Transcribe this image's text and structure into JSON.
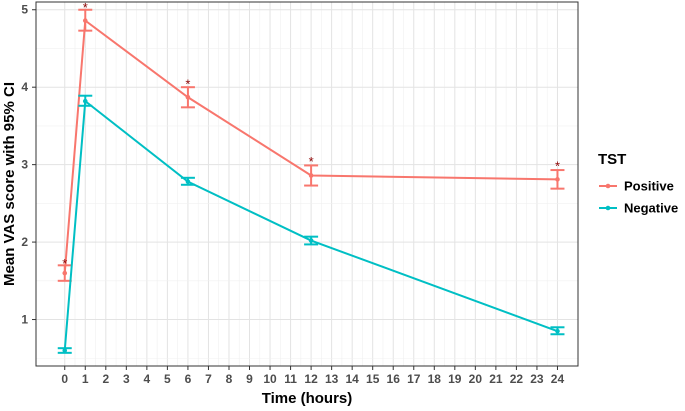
{
  "chart_data": {
    "type": "line",
    "xlabel": "Time (hours)",
    "ylabel": "Mean VAS score with 95% CI",
    "xlim": [
      -1.4,
      25
    ],
    "ylim": [
      0.4,
      5.1
    ],
    "x_ticks": [
      0,
      1,
      2,
      3,
      4,
      5,
      6,
      7,
      8,
      9,
      10,
      11,
      12,
      13,
      14,
      15,
      16,
      17,
      18,
      19,
      20,
      21,
      22,
      23,
      24
    ],
    "y_ticks": [
      1,
      2,
      3,
      4,
      5
    ],
    "grid": true,
    "legend": {
      "title": "TST",
      "position": "right"
    },
    "series": [
      {
        "name": "Positive",
        "color": "#f8766d",
        "x": [
          0,
          1,
          6,
          12,
          24
        ],
        "y": [
          1.6,
          4.86,
          3.87,
          2.86,
          2.81
        ],
        "ci_low": [
          1.5,
          4.73,
          3.74,
          2.73,
          2.69
        ],
        "ci_high": [
          1.7,
          5.0,
          4.0,
          2.99,
          2.93
        ]
      },
      {
        "name": "Negative",
        "color": "#00bfc4",
        "x": [
          0,
          1,
          6,
          12,
          24
        ],
        "y": [
          0.6,
          3.82,
          2.78,
          2.02,
          0.85
        ],
        "ci_low": [
          0.57,
          3.76,
          2.74,
          1.97,
          0.81
        ],
        "ci_high": [
          0.63,
          3.89,
          2.83,
          2.07,
          0.9
        ]
      }
    ],
    "annotations": [
      {
        "x": 0,
        "y": 1.74,
        "text": "*"
      },
      {
        "x": 1,
        "y": 5.05,
        "text": "*"
      },
      {
        "x": 6,
        "y": 4.06,
        "text": "*"
      },
      {
        "x": 12,
        "y": 3.06,
        "text": "*"
      },
      {
        "x": 24,
        "y": 3.0,
        "text": "*"
      }
    ]
  }
}
